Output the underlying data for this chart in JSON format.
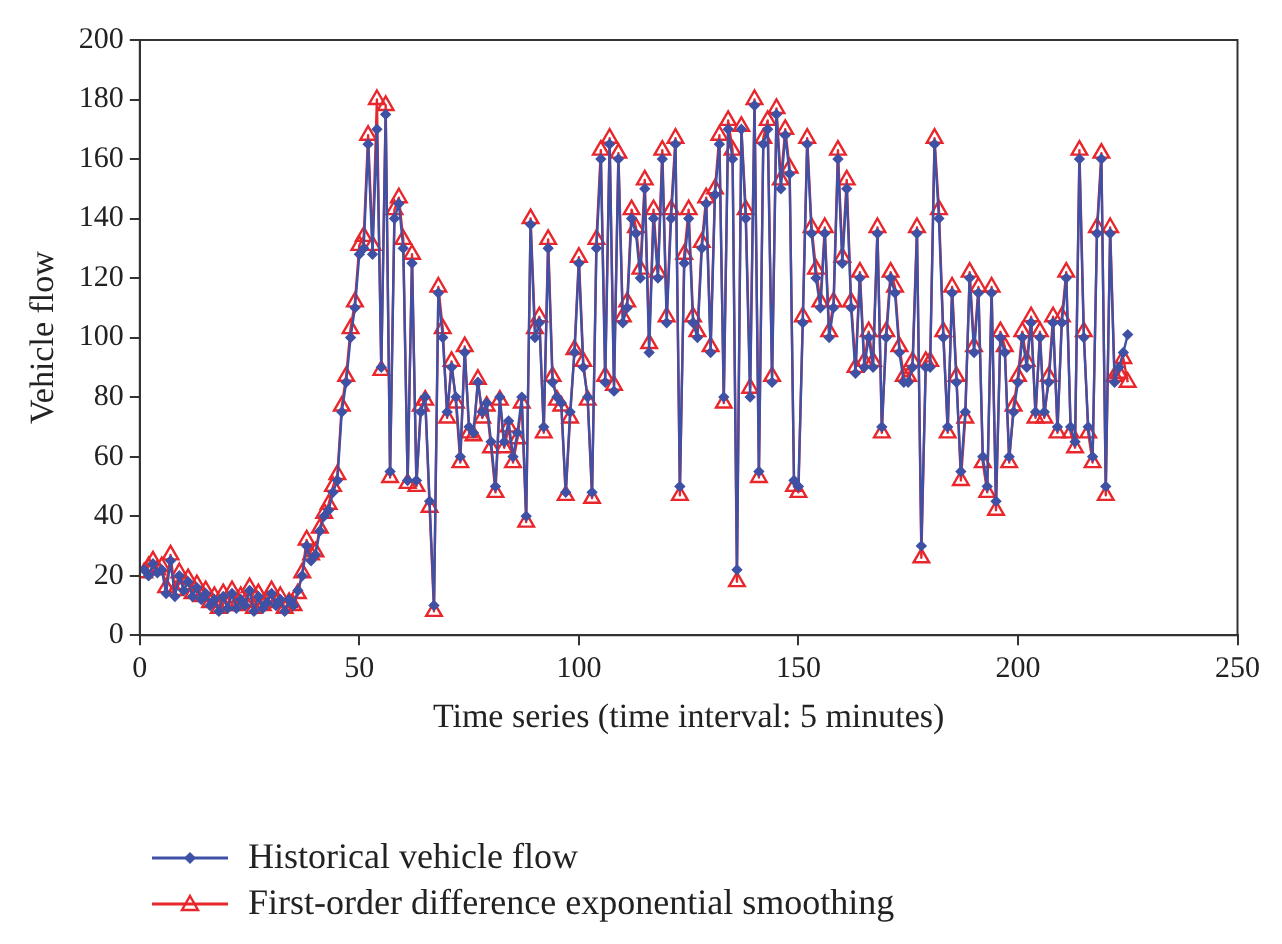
{
  "chart_data": {
    "type": "line",
    "xlabel": "Time series (time interval: 5 minutes)",
    "ylabel": "Vehicle flow",
    "xlim": [
      0,
      250
    ],
    "xticks": [
      0,
      50,
      100,
      150,
      200,
      250
    ],
    "ylim": [
      0,
      200
    ],
    "yticks": [
      0,
      20,
      40,
      60,
      80,
      100,
      120,
      140,
      160,
      180,
      200
    ],
    "grid": false,
    "legend": "bottom left",
    "x": [
      1,
      2,
      3,
      4,
      5,
      6,
      7,
      8,
      9,
      10,
      11,
      12,
      13,
      14,
      15,
      16,
      17,
      18,
      19,
      20,
      21,
      22,
      23,
      24,
      25,
      26,
      27,
      28,
      29,
      30,
      31,
      32,
      33,
      34,
      35,
      36,
      37,
      38,
      39,
      40,
      41,
      42,
      43,
      44,
      45,
      46,
      47,
      48,
      49,
      50,
      51,
      52,
      53,
      54,
      55,
      56,
      57,
      58,
      59,
      60,
      61,
      62,
      63,
      64,
      65,
      66,
      67,
      68,
      69,
      70,
      71,
      72,
      73,
      74,
      75,
      76,
      77,
      78,
      79,
      80,
      81,
      82,
      83,
      84,
      85,
      86,
      87,
      88,
      89,
      90,
      91,
      92,
      93,
      94,
      95,
      96,
      97,
      98,
      99,
      100,
      101,
      102,
      103,
      104,
      105,
      106,
      107,
      108,
      109,
      110,
      111,
      112,
      113,
      114,
      115,
      116,
      117,
      118,
      119,
      120,
      121,
      122,
      123,
      124,
      125,
      126,
      127,
      128,
      129,
      130,
      131,
      132,
      133,
      134,
      135,
      136,
      137,
      138,
      139,
      140,
      141,
      142,
      143,
      144,
      145,
      146,
      147,
      148,
      149,
      150,
      151,
      152,
      153,
      154,
      155,
      156,
      157,
      158,
      159,
      160,
      161,
      162,
      163,
      164,
      165,
      166,
      167,
      168,
      169,
      170,
      171,
      172,
      173,
      174,
      175,
      176,
      177,
      178,
      179,
      180,
      181,
      182,
      183,
      184,
      185,
      186,
      187,
      188,
      189,
      190,
      191,
      192,
      193,
      194,
      195,
      196,
      197,
      198,
      199,
      200,
      201,
      202,
      203,
      204,
      205,
      206,
      207,
      208,
      209,
      210,
      211,
      212,
      213,
      214,
      215,
      216,
      217,
      218,
      219,
      220,
      221,
      222,
      223,
      224,
      225
    ],
    "series": [
      {
        "name": "Historical vehicle flow",
        "color": "#3f51a5",
        "marker": "diamond",
        "values": [
          22,
          20,
          24,
          21,
          22,
          14,
          25,
          13,
          20,
          15,
          18,
          13,
          16,
          12,
          14,
          10,
          12,
          8,
          13,
          9,
          14,
          9,
          12,
          10,
          15,
          8,
          13,
          9,
          11,
          14,
          10,
          12,
          8,
          12,
          10,
          15,
          20,
          30,
          25,
          27,
          35,
          40,
          42,
          48,
          52,
          75,
          85,
          100,
          110,
          128,
          130,
          165,
          128,
          170,
          90,
          175,
          55,
          140,
          145,
          130,
          52,
          125,
          52,
          75,
          80,
          45,
          10,
          115,
          100,
          75,
          90,
          80,
          60,
          95,
          70,
          68,
          85,
          75,
          78,
          65,
          50,
          80,
          65,
          72,
          60,
          68,
          80,
          40,
          138,
          100,
          105,
          70,
          130,
          85,
          80,
          78,
          48,
          75,
          95,
          125,
          90,
          80,
          48,
          130,
          160,
          85,
          165,
          82,
          160,
          105,
          110,
          140,
          135,
          120,
          150,
          95,
          140,
          120,
          160,
          105,
          140,
          165,
          50,
          125,
          140,
          105,
          100,
          130,
          145,
          95,
          148,
          165,
          80,
          170,
          160,
          22,
          170,
          140,
          80,
          178,
          55,
          165,
          170,
          85,
          175,
          150,
          168,
          155,
          52,
          50,
          105,
          165,
          135,
          120,
          110,
          135,
          100,
          110,
          160,
          125,
          150,
          110,
          88,
          120,
          90,
          100,
          90,
          135,
          70,
          100,
          120,
          115,
          95,
          85,
          85,
          90,
          135,
          30,
          90,
          90,
          165,
          140,
          100,
          70,
          115,
          85,
          55,
          75,
          120,
          95,
          115,
          60,
          50,
          115,
          45,
          100,
          95,
          60,
          75,
          85,
          100,
          90,
          105,
          75,
          100,
          75,
          85,
          105,
          70,
          105,
          120,
          70,
          65,
          160,
          100,
          70,
          60,
          135,
          160,
          50,
          135,
          85,
          90,
          95,
          101
        ]
      },
      {
        "name": "First-order difference exponential smoothing",
        "color": "#e8262b",
        "marker": "triangle",
        "values": [
          21,
          23,
          25,
          22,
          23,
          16,
          27,
          15,
          21,
          17,
          19,
          14,
          17,
          13,
          15,
          11,
          13,
          9,
          14,
          10,
          15,
          10,
          13,
          11,
          16,
          9,
          14,
          10,
          12,
          15,
          11,
          13,
          9,
          11,
          10,
          14,
          21,
          32,
          27,
          28,
          36,
          41,
          44,
          50,
          54,
          77,
          87,
          103,
          112,
          131,
          134,
          168,
          131,
          180,
          89,
          178,
          53,
          143,
          147,
          133,
          51,
          128,
          50,
          77,
          79,
          43,
          8,
          117,
          103,
          73,
          92,
          78,
          58,
          97,
          68,
          67,
          86,
          73,
          77,
          63,
          48,
          79,
          63,
          70,
          58,
          66,
          78,
          38,
          140,
          103,
          107,
          68,
          133,
          87,
          79,
          77,
          47,
          73,
          96,
          127,
          92,
          79,
          46,
          133,
          163,
          87,
          167,
          84,
          162,
          107,
          112,
          143,
          137,
          123,
          153,
          98,
          143,
          122,
          163,
          107,
          143,
          167,
          47,
          128,
          143,
          107,
          102,
          132,
          147,
          97,
          150,
          168,
          78,
          173,
          163,
          18,
          171,
          143,
          83,
          180,
          53,
          167,
          173,
          87,
          177,
          153,
          170,
          157,
          50,
          48,
          107,
          167,
          137,
          123,
          112,
          137,
          102,
          112,
          163,
          127,
          153,
          112,
          90,
          122,
          92,
          102,
          92,
          137,
          68,
          102,
          122,
          117,
          97,
          87,
          87,
          92,
          137,
          26,
          92,
          92,
          167,
          143,
          102,
          68,
          117,
          87,
          52,
          73,
          122,
          97,
          117,
          58,
          48,
          117,
          42,
          102,
          97,
          58,
          77,
          87,
          102,
          92,
          107,
          73,
          102,
          73,
          87,
          107,
          68,
          107,
          122,
          68,
          63,
          163,
          102,
          68,
          58,
          137,
          162,
          47,
          137,
          87,
          88,
          93,
          85
        ]
      }
    ]
  }
}
